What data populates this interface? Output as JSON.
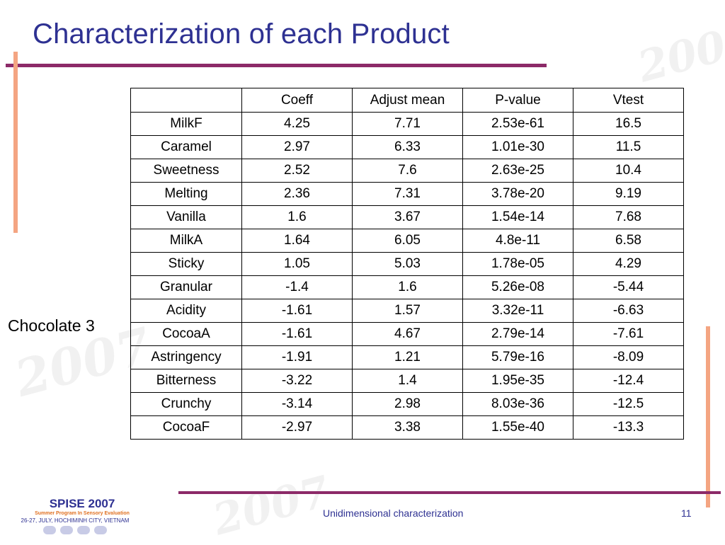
{
  "slide": {
    "title": "Characterization of each Product",
    "row_group_label": "Chocolate 3",
    "footer_center": "Unidimensional characterization",
    "page_number": "11",
    "logo": {
      "title": "SPISE 2007",
      "subtitle": "Summer Program In Sensory Evaluation",
      "place": "26-27, JULY, HOCHIMINH CITY, VIETNAM"
    },
    "colors": {
      "title": "#2e3192",
      "accent_bar": "#8c2a68",
      "side_bar": "#f4a582"
    }
  },
  "table": {
    "headers": [
      "",
      "Coeff",
      "Adjust mean",
      "P-value",
      "Vtest"
    ],
    "rows": [
      [
        "MilkF",
        "4.25",
        "7.71",
        "2.53e-61",
        "16.5"
      ],
      [
        "Caramel",
        "2.97",
        "6.33",
        "1.01e-30",
        "11.5"
      ],
      [
        "Sweetness",
        "2.52",
        "7.6",
        "2.63e-25",
        "10.4"
      ],
      [
        "Melting",
        "2.36",
        "7.31",
        "3.78e-20",
        "9.19"
      ],
      [
        "Vanilla",
        "1.6",
        "3.67",
        "1.54e-14",
        "7.68"
      ],
      [
        "MilkA",
        "1.64",
        "6.05",
        "4.8e-11",
        "6.58"
      ],
      [
        "Sticky",
        "1.05",
        "5.03",
        "1.78e-05",
        "4.29"
      ],
      [
        "Granular",
        "-1.4",
        "1.6",
        "5.26e-08",
        "-5.44"
      ],
      [
        "Acidity",
        "-1.61",
        "1.57",
        "3.32e-11",
        "-6.63"
      ],
      [
        "CocoaA",
        "-1.61",
        "4.67",
        "2.79e-14",
        "-7.61"
      ],
      [
        "Astringency",
        "-1.91",
        "1.21",
        "5.79e-16",
        "-8.09"
      ],
      [
        "Bitterness",
        "-3.22",
        "1.4",
        "1.95e-35",
        "-12.4"
      ],
      [
        "Crunchy",
        "-3.14",
        "2.98",
        "8.03e-36",
        "-12.5"
      ],
      [
        "CocoaF",
        "-2.97",
        "3.38",
        "1.55e-40",
        "-13.3"
      ]
    ]
  }
}
